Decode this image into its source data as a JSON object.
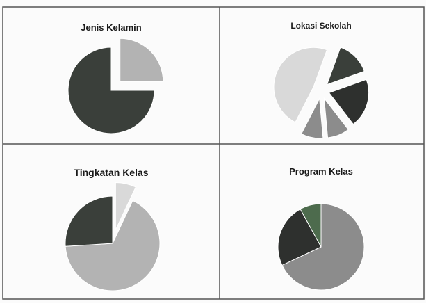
{
  "colors": {
    "border": "#555555",
    "background": "#fbfbfb",
    "slice_light": "#b3b3b3",
    "slice_mid": "#8c8c8c",
    "slice_dark": "#3a3f3a",
    "slice_darkest": "#2e302e",
    "slice_green": "#4d6b4d",
    "slice_lightest": "#d9d9d9",
    "label_text": "#222222"
  },
  "chart_data": [
    {
      "type": "pie",
      "title": "Jenis Kelamin",
      "slices": [
        {
          "label": "",
          "value": 25,
          "exploded": true
        },
        {
          "label": "",
          "value": 75,
          "exploded": false
        }
      ]
    },
    {
      "type": "pie",
      "title": "Lokasi Sekolah",
      "slices": [
        {
          "label": "",
          "value": 14,
          "exploded": true
        },
        {
          "label": "",
          "value": 20,
          "exploded": true
        },
        {
          "label": "",
          "value": 9,
          "exploded": true
        },
        {
          "label": "",
          "value": 9,
          "exploded": true
        },
        {
          "label": "",
          "value": 48,
          "exploded": true
        }
      ]
    },
    {
      "type": "pie",
      "title": "Tingkatan Kelas",
      "slices": [
        {
          "label": "",
          "value": 7,
          "exploded": true
        },
        {
          "label": "",
          "value": 67,
          "exploded": false
        },
        {
          "label": "",
          "value": 26,
          "exploded": false
        }
      ]
    },
    {
      "type": "pie",
      "title": "Program Kelas",
      "slices": [
        {
          "label": "",
          "value": 68,
          "exploded": false
        },
        {
          "label": "",
          "value": 24,
          "exploded": false
        },
        {
          "label": "",
          "value": 8,
          "exploded": false
        }
      ]
    }
  ]
}
